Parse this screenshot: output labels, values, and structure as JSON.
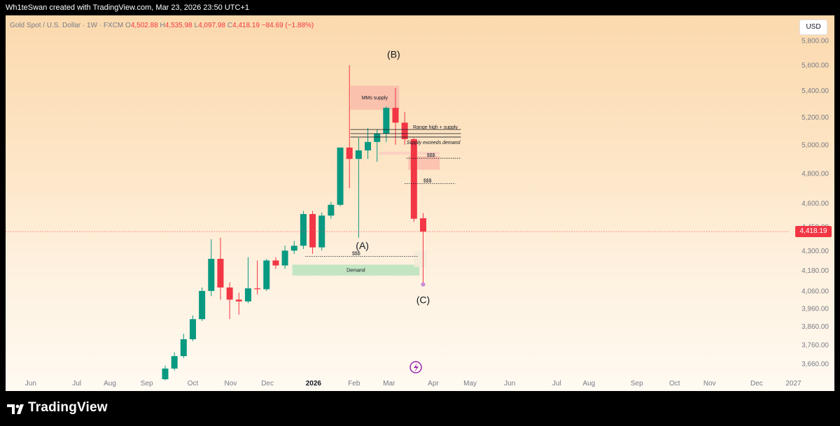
{
  "header": {
    "attribution": "Wh1teSwan created with TradingView.com, Mar 23, 2026 23:50 UTC+1"
  },
  "legend": {
    "symbol": "Gold Spot / U.S. Dollar · 1W · FXCM",
    "open_label": "O",
    "open": "4,502.88",
    "high_label": "H",
    "high": "4,535.98",
    "low_label": "L",
    "low": "4,097.98",
    "close_label": "C",
    "close": "4,418.19",
    "change": "−84.69 (−1.88%)"
  },
  "currency_button": "USD",
  "last_price_tag": "4,418.19",
  "footer": {
    "brand": "TradingView"
  },
  "colors": {
    "bull": "#089981",
    "bear": "#f23645",
    "supply_zone": "#f9b7a8",
    "demand_zone": "#b9e3bd",
    "grid_bg_top": "#fbd9ae"
  },
  "chart_data": {
    "type": "candlestick",
    "symbol": "Gold Spot / U.S. Dollar",
    "timeframe": "1W",
    "y_scale": "log",
    "ylim": [
      3560,
      5950
    ],
    "y_ticks": [
      {
        "value": 5800,
        "label": "5,800.00"
      },
      {
        "value": 5600,
        "label": "5,600.00"
      },
      {
        "value": 5400,
        "label": "5,400.00"
      },
      {
        "value": 5200,
        "label": "5,200.00"
      },
      {
        "value": 5000,
        "label": "5,000.00"
      },
      {
        "value": 4800,
        "label": "4,800.00"
      },
      {
        "value": 4600,
        "label": "4,600.00"
      },
      {
        "value": 4450,
        "label": "4,450.00"
      },
      {
        "value": 4300,
        "label": "4,300.00"
      },
      {
        "value": 4180,
        "label": "4,180.00"
      },
      {
        "value": 4060,
        "label": "4,060.00"
      },
      {
        "value": 3960,
        "label": "3,960.00"
      },
      {
        "value": 3860,
        "label": "3,860.00"
      },
      {
        "value": 3760,
        "label": "3,760.00"
      },
      {
        "value": 3660,
        "label": "3,660.00"
      }
    ],
    "x_ticks": [
      {
        "label": "Jun",
        "bold": false,
        "week": -14.6
      },
      {
        "label": "Jul",
        "bold": false,
        "week": -9.6
      },
      {
        "label": "Aug",
        "bold": false,
        "week": -6.0
      },
      {
        "label": "Sep",
        "bold": false,
        "week": -2.0
      },
      {
        "label": "Oct",
        "bold": false,
        "week": 3.0
      },
      {
        "label": "Nov",
        "bold": false,
        "week": 7.1
      },
      {
        "label": "Dec",
        "bold": false,
        "week": 11.1
      },
      {
        "label": "2026",
        "bold": true,
        "week": 16.1
      },
      {
        "label": "Feb",
        "bold": false,
        "week": 20.5
      },
      {
        "label": "Mar",
        "bold": false,
        "week": 24.3
      },
      {
        "label": "Apr",
        "bold": false,
        "week": 29.1
      },
      {
        "label": "May",
        "bold": false,
        "week": 33.1
      },
      {
        "label": "Jun",
        "bold": false,
        "week": 37.4
      },
      {
        "label": "Jul",
        "bold": false,
        "week": 42.5
      },
      {
        "label": "Aug",
        "bold": false,
        "week": 46.0
      },
      {
        "label": "Sep",
        "bold": false,
        "week": 51.2
      },
      {
        "label": "Oct",
        "bold": false,
        "week": 55.3
      },
      {
        "label": "Nov",
        "bold": false,
        "week": 59.1
      },
      {
        "label": "Dec",
        "bold": false,
        "week": 64.2
      },
      {
        "label": "2027",
        "bold": false,
        "week": 68.2
      }
    ],
    "candles": [
      {
        "o": 3580,
        "h": 3650,
        "l": 3575,
        "c": 3635
      },
      {
        "o": 3635,
        "h": 3720,
        "l": 3625,
        "c": 3700
      },
      {
        "o": 3700,
        "h": 3820,
        "l": 3690,
        "c": 3790
      },
      {
        "o": 3790,
        "h": 3920,
        "l": 3780,
        "c": 3900
      },
      {
        "o": 3900,
        "h": 4080,
        "l": 3890,
        "c": 4060
      },
      {
        "o": 4060,
        "h": 4370,
        "l": 4030,
        "c": 4250
      },
      {
        "o": 4250,
        "h": 4380,
        "l": 4010,
        "c": 4080
      },
      {
        "o": 4080,
        "h": 4110,
        "l": 3900,
        "c": 4010
      },
      {
        "o": 4010,
        "h": 4050,
        "l": 3925,
        "c": 4000
      },
      {
        "o": 4000,
        "h": 4260,
        "l": 3990,
        "c": 4075
      },
      {
        "o": 4075,
        "h": 4240,
        "l": 4040,
        "c": 4070
      },
      {
        "o": 4070,
        "h": 4250,
        "l": 4060,
        "c": 4240
      },
      {
        "o": 4240,
        "h": 4260,
        "l": 4190,
        "c": 4210
      },
      {
        "o": 4210,
        "h": 4330,
        "l": 4190,
        "c": 4300
      },
      {
        "o": 4300,
        "h": 4360,
        "l": 4280,
        "c": 4330
      },
      {
        "o": 4330,
        "h": 4550,
        "l": 4310,
        "c": 4530
      },
      {
        "o": 4530,
        "h": 4550,
        "l": 4280,
        "c": 4320
      },
      {
        "o": 4320,
        "h": 4540,
        "l": 4300,
        "c": 4520
      },
      {
        "o": 4520,
        "h": 4610,
        "l": 4500,
        "c": 4590
      },
      {
        "o": 4590,
        "h": 4980,
        "l": 4580,
        "c": 4980
      },
      {
        "o": 4980,
        "h": 5600,
        "l": 4700,
        "c": 4900
      },
      {
        "o": 4900,
        "h": 5050,
        "l": 4380,
        "c": 4960
      },
      {
        "o": 4960,
        "h": 5120,
        "l": 4900,
        "c": 5020
      },
      {
        "o": 5020,
        "h": 5110,
        "l": 4880,
        "c": 5080
      },
      {
        "o": 5080,
        "h": 5280,
        "l": 5020,
        "c": 5270
      },
      {
        "o": 5270,
        "h": 5420,
        "l": 5000,
        "c": 5160
      },
      {
        "o": 5160,
        "h": 5240,
        "l": 5000,
        "c": 5040
      },
      {
        "o": 5040,
        "h": 5050,
        "l": 4480,
        "c": 4500
      },
      {
        "o": 4502.88,
        "h": 4535.98,
        "l": 4097.98,
        "c": 4418.19
      }
    ],
    "last_price": 4418.19,
    "zones": [
      {
        "label": "MMs supply",
        "kind": "supply",
        "x0": 20.1,
        "x1": 25.4,
        "y0": 5255,
        "y1": 5440
      },
      {
        "label": "",
        "kind": "supply",
        "x0": 26.4,
        "x1": 29.8,
        "y0": 4825,
        "y1": 4920
      },
      {
        "label": "",
        "kind": "supply-light",
        "x0": 23.2,
        "x1": 29.8,
        "y0": 4930,
        "y1": 4950
      },
      {
        "label": "Demand",
        "kind": "demand",
        "x0": 13.8,
        "x1": 27.6,
        "y0": 4150,
        "y1": 4215
      },
      {
        "label": "",
        "kind": "neutral",
        "x0": 27.0,
        "x1": 28.4,
        "y0": 4200,
        "y1": 4300
      }
    ],
    "levels": [
      {
        "label": "Range high + supply",
        "x0": 20.1,
        "x1": 32.1,
        "y": 5110,
        "style": "solid"
      },
      {
        "label": "",
        "x0": 20.1,
        "x1": 32.1,
        "y": 5080,
        "style": "solid"
      },
      {
        "label": "Supply exceeds demand",
        "x0": 20.1,
        "x1": 32.1,
        "y": 5055,
        "style": "solid"
      },
      {
        "label": "$$$",
        "x0": 26.2,
        "x1": 32.1,
        "y": 4905,
        "style": "dotted"
      },
      {
        "label": "$$$",
        "x0": 26.0,
        "x1": 31.5,
        "y": 4730,
        "style": "dotted"
      },
      {
        "label": "$$$",
        "x0": 15.2,
        "x1": 27.5,
        "y": 4265,
        "style": "dotted"
      }
    ],
    "wave_labels": [
      {
        "text": "(B)",
        "week": 24.8,
        "price": 5660
      },
      {
        "text": "(A)",
        "week": 21.4,
        "price": 4310
      },
      {
        "text": "(C)",
        "week": 28.0,
        "price": 3990
      }
    ]
  }
}
